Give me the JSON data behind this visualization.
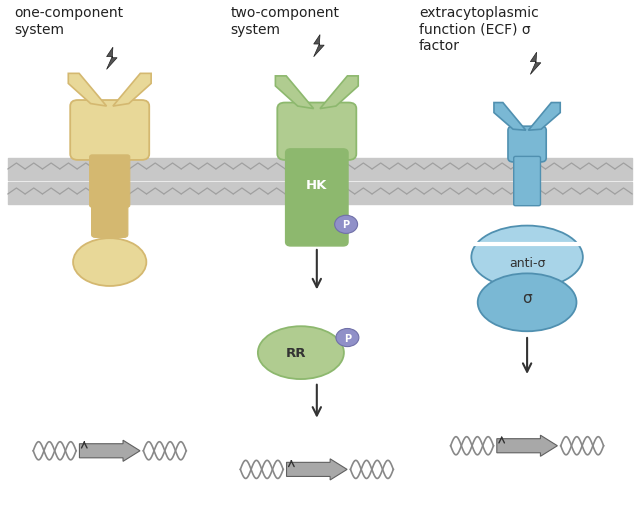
{
  "bg_color": "#ffffff",
  "membrane_color": "#c8c8c8",
  "membrane_wave_color": "#a0a0a0",
  "colors": {
    "yellow": "#d4b870",
    "yellow_light": "#e8d898",
    "green": "#8db86e",
    "green_light": "#b0cc90",
    "blue": "#7ab8d4",
    "blue_light": "#a8d4e8",
    "blue_dark": "#5090b0",
    "phospho": "#9090c8",
    "gray_dna": "#888888",
    "gray_box": "#a0a0a0"
  },
  "labels": {
    "one": "one-component\nsystem",
    "two": "two-component\nsystem",
    "ecf": "extracytoplasmic\nfunction (ECF) σ\nfactor"
  }
}
